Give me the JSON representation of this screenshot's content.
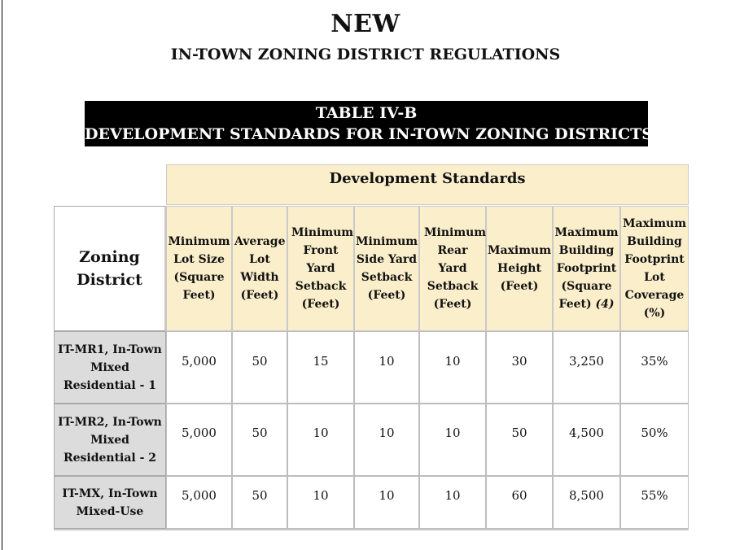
{
  "header": {
    "title": "NEW",
    "subtitle": "IN-TOWN ZONING DISTRICT REGULATIONS"
  },
  "table_banner": {
    "line1": "TABLE IV-B",
    "line2": "DEVELOPMENT STANDARDS FOR IN-TOWN ZONING DISTRICTS"
  },
  "table": {
    "group_header": "Development Standards",
    "zoning_header": "Zoning District",
    "columns": [
      "Minimum Lot Size (Square Feet)",
      "Average Lot Width (Feet)",
      "Minimum Front Yard Setback (Feet)",
      "Minimum Side Yard Setback (Feet)",
      "Minimum Rear Yard Setback (Feet)",
      "Maximum Height (Feet)",
      "Maximum Building Footprint (Square Feet)",
      "Maximum Building Footprint Lot Coverage (%)"
    ],
    "footnote_marker": "(4)",
    "rows": [
      {
        "district": "IT-MR1, In-Town Mixed Residential - 1",
        "values": [
          "5,000",
          "50",
          "15",
          "10",
          "10",
          "30",
          "3,250",
          "35%"
        ]
      },
      {
        "district": "IT-MR2, In-Town Mixed Residential - 2",
        "values": [
          "5,000",
          "50",
          "10",
          "10",
          "10",
          "50",
          "4,500",
          "50%"
        ]
      },
      {
        "district": "IT-MX, In-Town Mixed-Use",
        "values": [
          "5,000",
          "50",
          "10",
          "10",
          "10",
          "60",
          "8,500",
          "55%"
        ]
      }
    ]
  },
  "colors": {
    "header_fill": "#fbeecb",
    "row_label_fill": "#dcdcdc",
    "banner_fill": "#000000"
  }
}
